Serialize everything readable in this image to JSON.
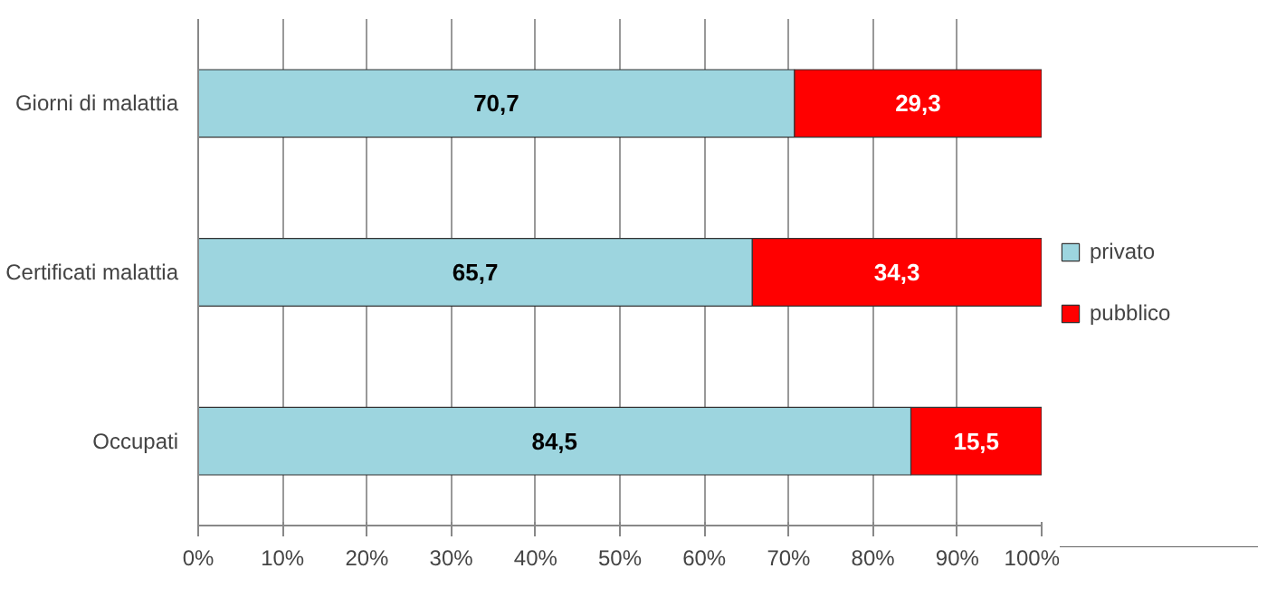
{
  "chart_data": {
    "type": "bar",
    "orientation": "horizontal",
    "stacked": true,
    "categories": [
      "Giorni di malattia",
      "Certificati malattia",
      "Occupati"
    ],
    "series": [
      {
        "name": "privato",
        "color": "#9dd5df",
        "values": [
          70.7,
          65.7,
          84.5
        ],
        "value_labels": [
          "70,7",
          "65,7",
          "84,5"
        ]
      },
      {
        "name": "pubblico",
        "color": "#ff0000",
        "values": [
          29.3,
          34.3,
          15.5
        ],
        "value_labels": [
          "29,3",
          "34,3",
          "15,5"
        ]
      }
    ],
    "xlim": [
      0,
      100
    ],
    "xticks": [
      {
        "value": 0,
        "label": "0%"
      },
      {
        "value": 10,
        "label": "10%"
      },
      {
        "value": 20,
        "label": "20%"
      },
      {
        "value": 30,
        "label": "30%"
      },
      {
        "value": 40,
        "label": "40%"
      },
      {
        "value": 50,
        "label": "50%"
      },
      {
        "value": 60,
        "label": "60%"
      },
      {
        "value": 70,
        "label": "70%"
      },
      {
        "value": 80,
        "label": "80%"
      },
      {
        "value": 90,
        "label": "90%"
      },
      {
        "value": 100,
        "label": "100%"
      }
    ],
    "grid": "x",
    "legend": "right"
  }
}
